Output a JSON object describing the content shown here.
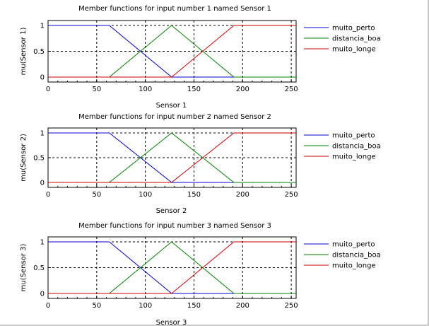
{
  "chart_data": [
    {
      "type": "line",
      "title": "Member functions for input number 1 named Sensor 1",
      "xlabel": "Sensor 1",
      "ylabel": "mu(Sensor 1)",
      "xlim": [
        0,
        255
      ],
      "ylim": [
        0,
        1
      ],
      "xticks": [
        0,
        50,
        100,
        150,
        200,
        250
      ],
      "yticks": [
        0,
        0.5,
        1
      ],
      "grid": "dashed",
      "legend": "right",
      "series": [
        {
          "name": "muito_perto",
          "color": "#0000cc",
          "x": [
            0,
            63,
            127,
            255
          ],
          "y": [
            1,
            1,
            0,
            0
          ]
        },
        {
          "name": "distancia_boa",
          "color": "#008000",
          "x": [
            0,
            63,
            127,
            191,
            255
          ],
          "y": [
            0,
            0,
            1,
            0,
            0
          ]
        },
        {
          "name": "muito_longe",
          "color": "#cc0000",
          "x": [
            0,
            127,
            191,
            255
          ],
          "y": [
            0,
            0,
            1,
            1
          ]
        }
      ]
    },
    {
      "type": "line",
      "title": "Member functions for input number 2 named Sensor 2",
      "xlabel": "Sensor 2",
      "ylabel": "mu(Sensor 2)",
      "xlim": [
        0,
        255
      ],
      "ylim": [
        0,
        1
      ],
      "xticks": [
        0,
        50,
        100,
        150,
        200,
        250
      ],
      "yticks": [
        0,
        0.5,
        1
      ],
      "grid": "dashed",
      "legend": "right",
      "series": [
        {
          "name": "muito_perto",
          "color": "#0000cc",
          "x": [
            0,
            63,
            127,
            255
          ],
          "y": [
            1,
            1,
            0,
            0
          ]
        },
        {
          "name": "distancia_boa",
          "color": "#008000",
          "x": [
            0,
            63,
            127,
            191,
            255
          ],
          "y": [
            0,
            0,
            1,
            0,
            0
          ]
        },
        {
          "name": "muito_longe",
          "color": "#cc0000",
          "x": [
            0,
            127,
            191,
            255
          ],
          "y": [
            0,
            0,
            1,
            1
          ]
        }
      ]
    },
    {
      "type": "line",
      "title": "Member functions for input number 3 named Sensor 3",
      "xlabel": "Sensor 3",
      "ylabel": "mu(Sensor 3)",
      "xlim": [
        0,
        255
      ],
      "ylim": [
        0,
        1
      ],
      "xticks": [
        0,
        50,
        100,
        150,
        200,
        250
      ],
      "yticks": [
        0,
        0.5,
        1
      ],
      "grid": "dashed",
      "legend": "right",
      "series": [
        {
          "name": "muito_perto",
          "color": "#0000cc",
          "x": [
            0,
            63,
            127,
            255
          ],
          "y": [
            1,
            1,
            0,
            0
          ]
        },
        {
          "name": "distancia_boa",
          "color": "#008000",
          "x": [
            0,
            63,
            127,
            191,
            255
          ],
          "y": [
            0,
            0,
            1,
            0,
            0
          ]
        },
        {
          "name": "muito_longe",
          "color": "#cc0000",
          "x": [
            0,
            127,
            191,
            255
          ],
          "y": [
            0,
            0,
            1,
            1
          ]
        }
      ]
    }
  ]
}
